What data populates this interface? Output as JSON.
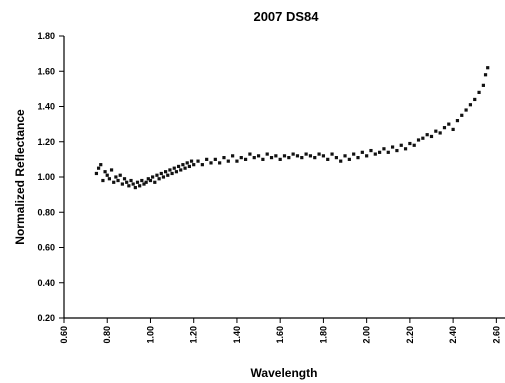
{
  "chart_data": {
    "type": "scatter",
    "title": "2007 DS84",
    "xlabel": "Wavelength",
    "ylabel": "Normalized Reflectance",
    "xlim": [
      0.6,
      2.64
    ],
    "ylim": [
      0.2,
      1.8
    ],
    "x_ticks": [
      "0.60",
      "0.80",
      "1.00",
      "1.20",
      "1.40",
      "1.60",
      "1.80",
      "2.00",
      "2.20",
      "2.40",
      "2.60"
    ],
    "y_ticks": [
      "0.20",
      "0.40",
      "0.60",
      "0.80",
      "1.00",
      "1.20",
      "1.40",
      "1.60",
      "1.80"
    ],
    "grid": false,
    "marker_color": "#111111",
    "series": [
      {
        "values": [
          [
            0.75,
            1.02
          ],
          [
            0.76,
            1.05
          ],
          [
            0.77,
            1.07
          ],
          [
            0.78,
            0.98
          ],
          [
            0.79,
            1.03
          ],
          [
            0.8,
            1.01
          ],
          [
            0.81,
            0.99
          ],
          [
            0.82,
            1.04
          ],
          [
            0.83,
            0.97
          ],
          [
            0.84,
            1.0
          ],
          [
            0.85,
            0.98
          ],
          [
            0.86,
            1.01
          ],
          [
            0.87,
            0.96
          ],
          [
            0.88,
            0.99
          ],
          [
            0.89,
            0.97
          ],
          [
            0.9,
            0.95
          ],
          [
            0.91,
            0.98
          ],
          [
            0.92,
            0.96
          ],
          [
            0.93,
            0.94
          ],
          [
            0.94,
            0.97
          ],
          [
            0.95,
            0.95
          ],
          [
            0.96,
            0.98
          ],
          [
            0.97,
            0.96
          ],
          [
            0.98,
            0.97
          ],
          [
            0.99,
            0.99
          ],
          [
            1.0,
            0.98
          ],
          [
            1.01,
            1.0
          ],
          [
            1.02,
            0.97
          ],
          [
            1.03,
            1.01
          ],
          [
            1.04,
            0.99
          ],
          [
            1.05,
            1.02
          ],
          [
            1.06,
            1.0
          ],
          [
            1.07,
            1.03
          ],
          [
            1.08,
            1.01
          ],
          [
            1.09,
            1.04
          ],
          [
            1.1,
            1.02
          ],
          [
            1.11,
            1.05
          ],
          [
            1.12,
            1.03
          ],
          [
            1.13,
            1.06
          ],
          [
            1.14,
            1.04
          ],
          [
            1.15,
            1.07
          ],
          [
            1.16,
            1.05
          ],
          [
            1.17,
            1.08
          ],
          [
            1.18,
            1.06
          ],
          [
            1.19,
            1.09
          ],
          [
            1.2,
            1.07
          ],
          [
            1.22,
            1.09
          ],
          [
            1.24,
            1.07
          ],
          [
            1.26,
            1.1
          ],
          [
            1.28,
            1.08
          ],
          [
            1.3,
            1.1
          ],
          [
            1.32,
            1.08
          ],
          [
            1.34,
            1.11
          ],
          [
            1.36,
            1.09
          ],
          [
            1.38,
            1.12
          ],
          [
            1.4,
            1.09
          ],
          [
            1.42,
            1.11
          ],
          [
            1.44,
            1.1
          ],
          [
            1.46,
            1.13
          ],
          [
            1.48,
            1.11
          ],
          [
            1.5,
            1.12
          ],
          [
            1.52,
            1.1
          ],
          [
            1.54,
            1.13
          ],
          [
            1.56,
            1.11
          ],
          [
            1.58,
            1.12
          ],
          [
            1.6,
            1.1
          ],
          [
            1.62,
            1.12
          ],
          [
            1.64,
            1.11
          ],
          [
            1.66,
            1.13
          ],
          [
            1.68,
            1.12
          ],
          [
            1.7,
            1.11
          ],
          [
            1.72,
            1.13
          ],
          [
            1.74,
            1.12
          ],
          [
            1.76,
            1.11
          ],
          [
            1.78,
            1.13
          ],
          [
            1.8,
            1.12
          ],
          [
            1.82,
            1.1
          ],
          [
            1.84,
            1.13
          ],
          [
            1.86,
            1.11
          ],
          [
            1.88,
            1.09
          ],
          [
            1.9,
            1.12
          ],
          [
            1.92,
            1.1
          ],
          [
            1.94,
            1.13
          ],
          [
            1.96,
            1.11
          ],
          [
            1.98,
            1.14
          ],
          [
            2.0,
            1.12
          ],
          [
            2.02,
            1.15
          ],
          [
            2.04,
            1.13
          ],
          [
            2.06,
            1.14
          ],
          [
            2.08,
            1.16
          ],
          [
            2.1,
            1.14
          ],
          [
            2.12,
            1.17
          ],
          [
            2.14,
            1.15
          ],
          [
            2.16,
            1.18
          ],
          [
            2.18,
            1.16
          ],
          [
            2.2,
            1.19
          ],
          [
            2.22,
            1.18
          ],
          [
            2.24,
            1.21
          ],
          [
            2.26,
            1.22
          ],
          [
            2.28,
            1.24
          ],
          [
            2.3,
            1.23
          ],
          [
            2.32,
            1.26
          ],
          [
            2.34,
            1.25
          ],
          [
            2.36,
            1.28
          ],
          [
            2.38,
            1.3
          ],
          [
            2.4,
            1.27
          ],
          [
            2.42,
            1.32
          ],
          [
            2.44,
            1.35
          ],
          [
            2.46,
            1.38
          ],
          [
            2.48,
            1.41
          ],
          [
            2.5,
            1.44
          ],
          [
            2.52,
            1.48
          ],
          [
            2.54,
            1.52
          ],
          [
            2.55,
            1.58
          ],
          [
            2.56,
            1.62
          ]
        ]
      }
    ]
  }
}
